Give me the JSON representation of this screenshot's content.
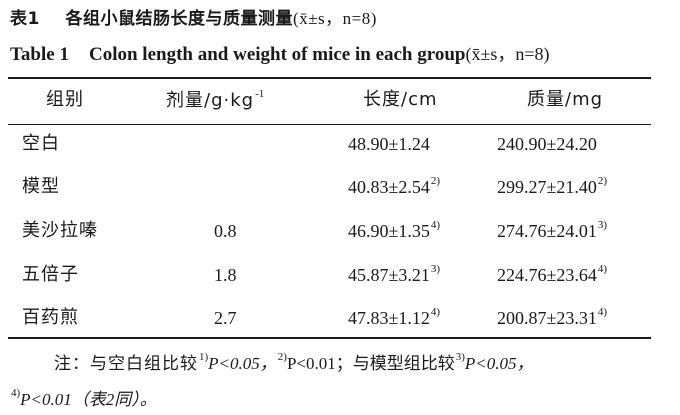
{
  "title_cn": {
    "label": "表1",
    "text": "各组小鼠结肠长度与质量测量",
    "stat": "(x̄±s，n=8)"
  },
  "title_en": {
    "label": "Table 1",
    "text": "Colon length and weight of mice in each group",
    "stat": "(x̄±s，n=8)"
  },
  "table": {
    "headers": {
      "group": "组别",
      "dose": "剂量/g·kg",
      "dose_sup": "-1",
      "length": "长度/cm",
      "weight": "质量/mg"
    },
    "rows": [
      {
        "group": "空白",
        "dose": "",
        "length": "48.90±1.24",
        "length_sup": "",
        "weight": "240.90±24.20",
        "weight_sup": ""
      },
      {
        "group": "模型",
        "dose": "",
        "length": "40.83±2.54",
        "length_sup": "2)",
        "weight": "299.27±21.40",
        "weight_sup": "2)"
      },
      {
        "group": "美沙拉嗪",
        "dose": "0.8",
        "length": "46.90±1.35",
        "length_sup": "4)",
        "weight": "274.76±24.01",
        "weight_sup": "3)"
      },
      {
        "group": "五倍子",
        "dose": "1.8",
        "length": "45.87±3.21",
        "length_sup": "3)",
        "weight": "224.76±23.64",
        "weight_sup": "4)"
      },
      {
        "group": "百药煎",
        "dose": "2.7",
        "length": "47.83±1.12",
        "length_sup": "4)",
        "weight": "200.87±23.31",
        "weight_sup": "4)"
      }
    ]
  },
  "note": {
    "prefix": "注：与空白组比较",
    "s1": "1)",
    "p1": "P<0.05，",
    "s2": "2)",
    "p2": "P<0.01；与模型组比较",
    "s3": "3)",
    "p3": "P<0.05，",
    "s4": "4)",
    "p4": "P<0.01（表2同）。"
  }
}
